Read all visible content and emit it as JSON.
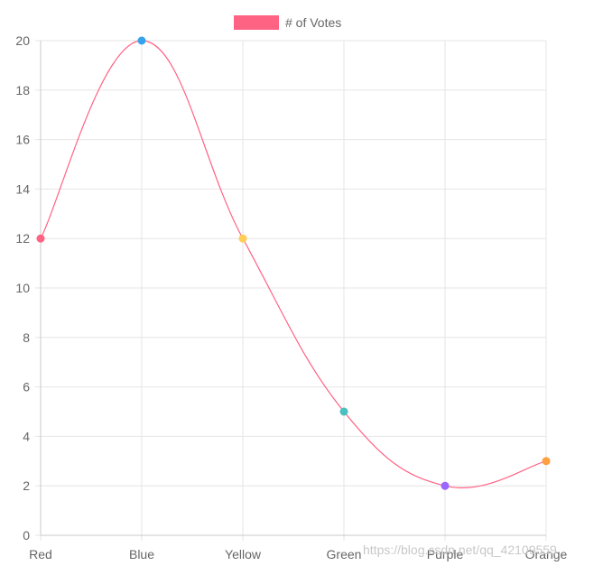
{
  "chart_data": {
    "type": "line",
    "categories": [
      "Red",
      "Blue",
      "Yellow",
      "Green",
      "Purple",
      "Orange"
    ],
    "series": [
      {
        "name": "# of Votes",
        "values": [
          12,
          20,
          12,
          5,
          2,
          3
        ],
        "line_color": "#ff6384",
        "point_colors": [
          "#ff6384",
          "#36a2eb",
          "#ffce56",
          "#4bc0c0",
          "#9966ff",
          "#ff9f40"
        ]
      }
    ],
    "ylim": [
      0,
      20
    ],
    "y_ticks": [
      "0",
      "2",
      "4",
      "6",
      "8",
      "10",
      "12",
      "14",
      "16",
      "18",
      "20"
    ],
    "grid": true,
    "legend_position": "top",
    "curve": "smooth"
  },
  "watermark": "https://blog.csdn.net/qq_42109559",
  "colors": {
    "grid": "#e6e6e6",
    "axis": "#c8c8c8",
    "text": "#666666"
  }
}
